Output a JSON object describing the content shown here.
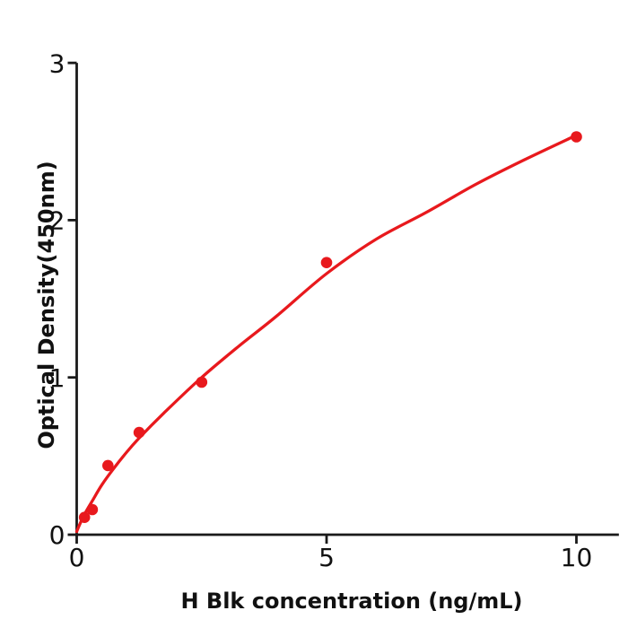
{
  "chart_data": {
    "type": "scatter",
    "title": "",
    "xlabel": "H  Blk concentration (ng/mL)",
    "ylabel": "Optical Density(450nm)",
    "xlim": [
      0,
      10.85
    ],
    "ylim": [
      0,
      3
    ],
    "x_ticks": [
      0,
      5,
      10
    ],
    "y_ticks": [
      0,
      1,
      2,
      3
    ],
    "grid": false,
    "legend_position": "none",
    "axis_color": "#1a1a1a",
    "text_color": "#111111",
    "background": "#ffffff",
    "series": [
      {
        "name": "standard-points",
        "type": "scatter",
        "color": "#e8191d",
        "x": [
          0.156,
          0.3125,
          0.625,
          1.25,
          2.5,
          5,
          10
        ],
        "y": [
          0.11,
          0.16,
          0.44,
          0.65,
          0.97,
          1.73,
          2.53
        ]
      },
      {
        "name": "fitted-curve",
        "type": "line",
        "color": "#e8191d",
        "x": [
          0,
          0.08,
          0.156,
          0.3125,
          0.5,
          0.75,
          1.0,
          1.25,
          1.75,
          2.5,
          3.25,
          4,
          5,
          6,
          7,
          8,
          9,
          10
        ],
        "y": [
          0.02,
          0.08,
          0.13,
          0.215,
          0.315,
          0.425,
          0.525,
          0.615,
          0.775,
          1.0,
          1.2,
          1.39,
          1.66,
          1.88,
          2.05,
          2.23,
          2.39,
          2.54
        ]
      }
    ]
  }
}
